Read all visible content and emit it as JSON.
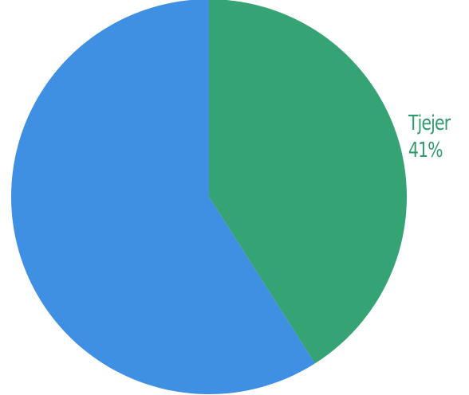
{
  "chart_data": {
    "type": "pie",
    "title": "",
    "slices": [
      {
        "label": "Tjejer",
        "value": 41,
        "value_label": "41%",
        "color": "#35a374"
      },
      {
        "label": "",
        "value": 59,
        "value_label": "",
        "color": "#3f8fe2"
      }
    ],
    "start": "top",
    "direction": "clockwise",
    "legend": "none"
  }
}
